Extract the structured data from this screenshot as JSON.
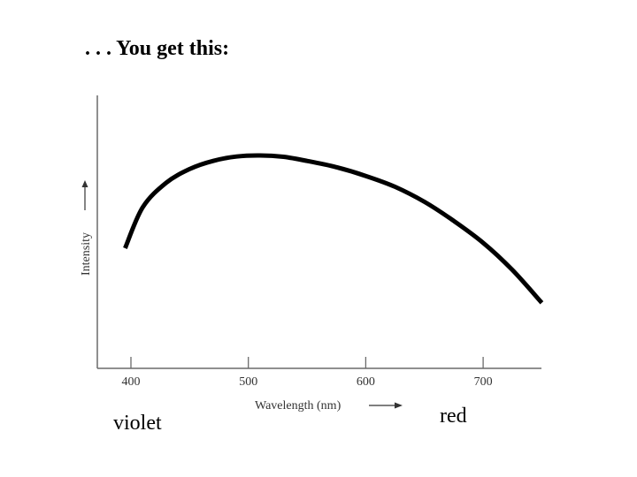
{
  "slide": {
    "title": ". . . You get this:"
  },
  "chart_data": {
    "type": "line",
    "title": "",
    "xlabel": "Wavelength (nm)",
    "ylabel": "Intensity",
    "xlim": [
      370,
      750
    ],
    "ylim": [
      0,
      1
    ],
    "xticks": [
      400,
      500,
      600,
      700
    ],
    "grid": false,
    "legend": "none",
    "series": [
      {
        "x": [
          395,
          410,
          430,
          450,
          470,
          490,
          510,
          530,
          550,
          575,
          600,
          625,
          650,
          675,
          700,
          725,
          750
        ],
        "y": [
          0.44,
          0.59,
          0.68,
          0.73,
          0.76,
          0.776,
          0.78,
          0.775,
          0.76,
          0.737,
          0.705,
          0.665,
          0.61,
          0.54,
          0.46,
          0.36,
          0.24
        ],
        "color": "#000000"
      }
    ],
    "spectrum_labels": {
      "left": "violet",
      "right": "red"
    }
  }
}
